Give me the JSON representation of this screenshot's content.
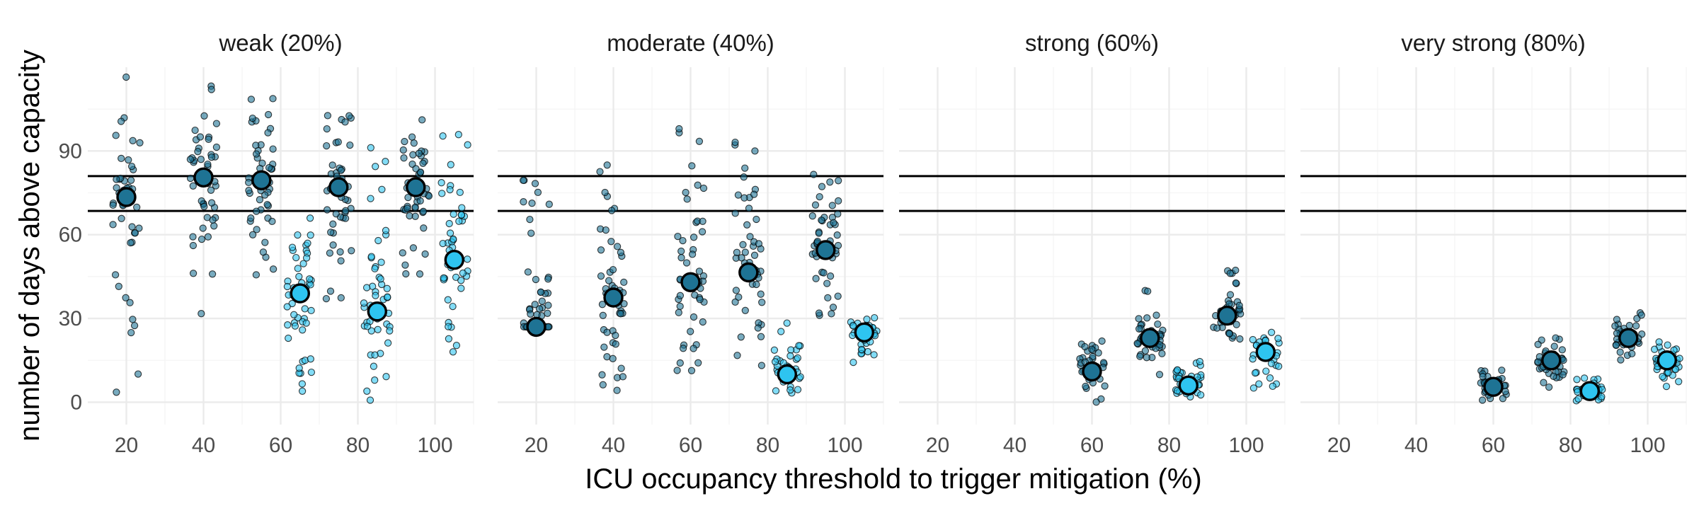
{
  "chart_data": {
    "type": "scatter",
    "panels": [
      "weak (20%)",
      "moderate (40%)",
      "strong (60%)",
      "very strong (80%)"
    ],
    "xlabel": "ICU occupancy threshold to trigger mitigation (%)",
    "ylabel": "number of days above capacity",
    "xlim": [
      10,
      110
    ],
    "ylim": [
      -8,
      120
    ],
    "x_ticks": [
      20,
      40,
      60,
      80,
      100
    ],
    "x_tick_labels": [
      "20",
      "40",
      "60",
      "80",
      "100"
    ],
    "y_ticks": [
      0,
      30,
      60,
      90
    ],
    "y_tick_labels": [
      "0",
      "30",
      "60",
      "90"
    ],
    "reference_lines": [
      81,
      68.5
    ],
    "colors": {
      "series_dark": "#1e7394",
      "series_light": "#2ec4f0",
      "outline": "#000000",
      "grid": "#ebebeb",
      "background": "#ffffff"
    },
    "groups": [
      {
        "panel": 0,
        "x": 20,
        "variant": "dark",
        "mean": 73.5,
        "min": 0,
        "max": 117
      },
      {
        "panel": 0,
        "x": 40,
        "variant": "dark",
        "mean": 80.5,
        "min": 29,
        "max": 114
      },
      {
        "panel": 0,
        "x": 55,
        "variant": "dark",
        "mean": 79.5,
        "min": 45,
        "max": 111
      },
      {
        "panel": 0,
        "x": 65,
        "variant": "light",
        "mean": 39,
        "min": 2,
        "max": 78
      },
      {
        "panel": 0,
        "x": 75,
        "variant": "dark",
        "mean": 77,
        "min": 36,
        "max": 107
      },
      {
        "panel": 0,
        "x": 85,
        "variant": "light",
        "mean": 32.5,
        "min": 0,
        "max": 94
      },
      {
        "panel": 0,
        "x": 95,
        "variant": "dark",
        "mean": 77,
        "min": 45,
        "max": 103
      },
      {
        "panel": 0,
        "x": 105,
        "variant": "light",
        "mean": 51,
        "min": 17,
        "max": 100
      },
      {
        "panel": 1,
        "x": 20,
        "variant": "dark",
        "mean": 27,
        "min": 27,
        "max": 88
      },
      {
        "panel": 1,
        "x": 40,
        "variant": "dark",
        "mean": 37.5,
        "min": 2,
        "max": 86
      },
      {
        "panel": 1,
        "x": 60,
        "variant": "dark",
        "mean": 43,
        "min": 6,
        "max": 98
      },
      {
        "panel": 1,
        "x": 75,
        "variant": "dark",
        "mean": 46.5,
        "min": 10,
        "max": 94
      },
      {
        "panel": 1,
        "x": 85,
        "variant": "light",
        "mean": 10,
        "min": 0,
        "max": 29
      },
      {
        "panel": 1,
        "x": 95,
        "variant": "dark",
        "mean": 54.5,
        "min": 30,
        "max": 82
      },
      {
        "panel": 1,
        "x": 105,
        "variant": "light",
        "mean": 25,
        "min": 14,
        "max": 34
      },
      {
        "panel": 2,
        "x": 60,
        "variant": "dark",
        "mean": 11,
        "min": 0,
        "max": 30
      },
      {
        "panel": 2,
        "x": 75,
        "variant": "dark",
        "mean": 23,
        "min": 8,
        "max": 41
      },
      {
        "panel": 2,
        "x": 85,
        "variant": "light",
        "mean": 6,
        "min": 0,
        "max": 16
      },
      {
        "panel": 2,
        "x": 95,
        "variant": "dark",
        "mean": 31,
        "min": 20,
        "max": 48
      },
      {
        "panel": 2,
        "x": 105,
        "variant": "light",
        "mean": 18,
        "min": 4,
        "max": 25
      },
      {
        "panel": 3,
        "x": 60,
        "variant": "dark",
        "mean": 5.5,
        "min": 0,
        "max": 17
      },
      {
        "panel": 3,
        "x": 75,
        "variant": "dark",
        "mean": 15,
        "min": 5,
        "max": 24
      },
      {
        "panel": 3,
        "x": 85,
        "variant": "light",
        "mean": 4,
        "min": 0,
        "max": 9
      },
      {
        "panel": 3,
        "x": 95,
        "variant": "dark",
        "mean": 23,
        "min": 15,
        "max": 32
      },
      {
        "panel": 3,
        "x": 105,
        "variant": "light",
        "mean": 15,
        "min": 4,
        "max": 23
      }
    ]
  }
}
